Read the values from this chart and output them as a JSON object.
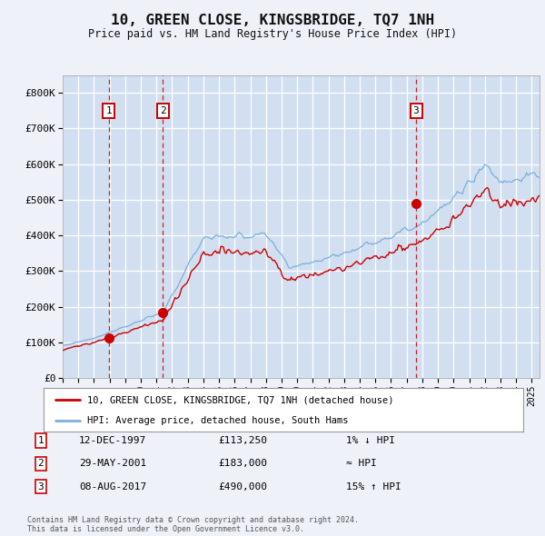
{
  "title": "10, GREEN CLOSE, KINGSBRIDGE, TQ7 1NH",
  "subtitle": "Price paid vs. HM Land Registry's House Price Index (HPI)",
  "xlim": [
    1995.0,
    2025.5
  ],
  "ylim": [
    0,
    850000
  ],
  "yticks": [
    0,
    100000,
    200000,
    300000,
    400000,
    500000,
    600000,
    700000,
    800000
  ],
  "ytick_labels": [
    "£0",
    "£100K",
    "£200K",
    "£300K",
    "£400K",
    "£500K",
    "£600K",
    "£700K",
    "£800K"
  ],
  "background_color": "#eef2f8",
  "plot_bg_color": "#dce8f5",
  "grid_color": "#ffffff",
  "hpi_color": "#7ab0d8",
  "price_color": "#cc0000",
  "sale_marker_color": "#cc0000",
  "dashed_line_color": "#cc0000",
  "shade_color": "#c8d8ee",
  "legend_entries": [
    "10, GREEN CLOSE, KINGSBRIDGE, TQ7 1NH (detached house)",
    "HPI: Average price, detached house, South Hams"
  ],
  "sales": [
    {
      "date_year": 1997.95,
      "price": 113250,
      "label": "1"
    },
    {
      "date_year": 2001.41,
      "price": 183000,
      "label": "2"
    },
    {
      "date_year": 2017.6,
      "price": 490000,
      "label": "3"
    }
  ],
  "table_rows": [
    {
      "label": "1",
      "date": "12-DEC-1997",
      "price": "£113,250",
      "hpi_note": "1% ↓ HPI"
    },
    {
      "label": "2",
      "date": "29-MAY-2001",
      "price": "£183,000",
      "hpi_note": "≈ HPI"
    },
    {
      "label": "3",
      "date": "08-AUG-2017",
      "price": "£490,000",
      "hpi_note": "15% ↑ HPI"
    }
  ],
  "footer": "Contains HM Land Registry data © Crown copyright and database right 2024.\nThis data is licensed under the Open Government Licence v3.0."
}
